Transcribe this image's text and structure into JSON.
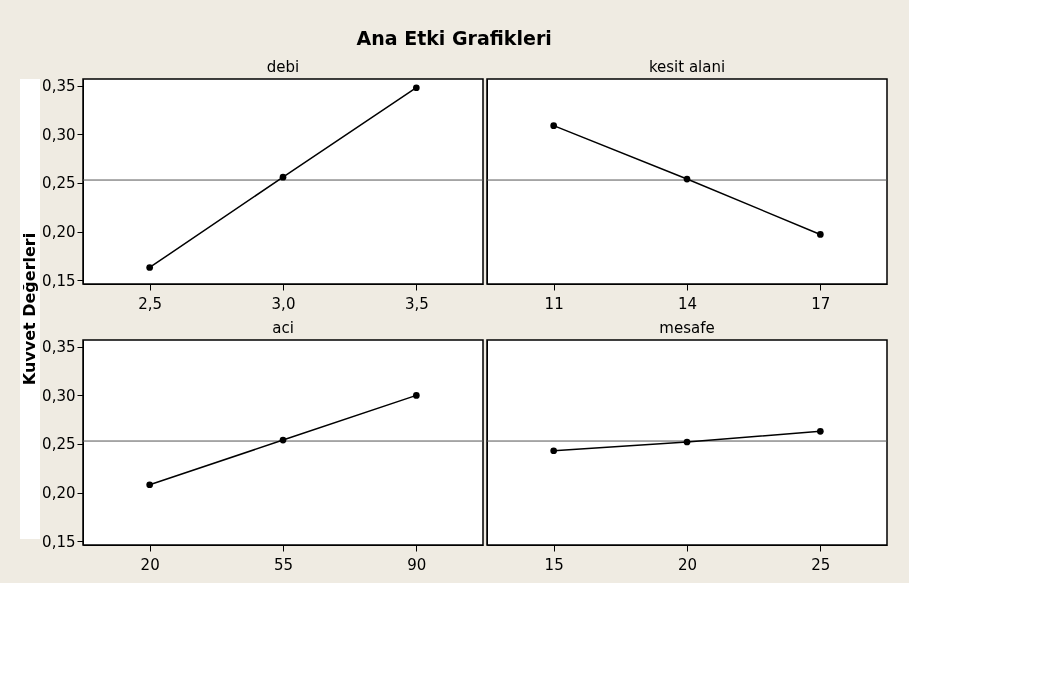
{
  "chart_data": [
    {
      "type": "line",
      "title": "Ana Etki Grafikleri",
      "ylabel": "Kuvvet Değerleri",
      "xlabel": "debi",
      "x": [
        2.5,
        3.0,
        3.5
      ],
      "values": [
        0.163,
        0.256,
        0.348
      ],
      "color": "#000000",
      "marker": "circle",
      "line_style": "solid",
      "grid": false,
      "xlim": [
        2.25,
        3.75
      ],
      "xticks": [
        {
          "value": 2.5,
          "label": "2,5"
        },
        {
          "value": 3.0,
          "label": "3,0"
        },
        {
          "value": 3.5,
          "label": "3,5"
        }
      ],
      "ylim": [
        0.146,
        0.357
      ],
      "yticks": [
        {
          "value": 0.15,
          "label": "0,15"
        },
        {
          "value": 0.2,
          "label": "0,20"
        },
        {
          "value": 0.25,
          "label": "0,25"
        },
        {
          "value": 0.3,
          "label": "0,30"
        },
        {
          "value": 0.35,
          "label": "0,35"
        }
      ],
      "ref_lines": [
        {
          "axis": "y",
          "value": 0.253,
          "color": "#555555"
        }
      ]
    },
    {
      "type": "line",
      "xlabel": "kesit alani",
      "x": [
        11,
        14,
        17
      ],
      "values": [
        0.309,
        0.254,
        0.197
      ],
      "color": "#000000",
      "marker": "circle",
      "line_style": "solid",
      "grid": false,
      "tick_labels": "x",
      "xlim": [
        9.5,
        18.5
      ],
      "xticks": [
        11,
        14,
        17
      ],
      "ylim": [
        0.146,
        0.357
      ],
      "ref_lines": [
        {
          "axis": "y",
          "value": 0.253,
          "color": "#555555"
        }
      ]
    },
    {
      "type": "line",
      "xlabel": "aci",
      "x": [
        20,
        55,
        90
      ],
      "values": [
        0.208,
        0.254,
        0.3
      ],
      "color": "#000000",
      "marker": "circle",
      "line_style": "solid",
      "grid": false,
      "xlim": [
        2.5,
        107.5
      ],
      "xticks": [
        20,
        55,
        90
      ],
      "ylim": [
        0.146,
        0.357
      ],
      "yticks": [
        {
          "value": 0.15,
          "label": "0,15"
        },
        {
          "value": 0.2,
          "label": "0,20"
        },
        {
          "value": 0.25,
          "label": "0,25"
        },
        {
          "value": 0.3,
          "label": "0,30"
        },
        {
          "value": 0.35,
          "label": "0,35"
        }
      ],
      "ref_lines": [
        {
          "axis": "y",
          "value": 0.253,
          "color": "#555555"
        }
      ]
    },
    {
      "type": "line",
      "xlabel": "mesafe",
      "x": [
        15,
        20,
        25
      ],
      "values": [
        0.243,
        0.252,
        0.263
      ],
      "color": "#000000",
      "marker": "circle",
      "line_style": "solid",
      "grid": false,
      "tick_labels": "x",
      "xlim": [
        12.5,
        27.5
      ],
      "xticks": [
        15,
        20,
        25
      ],
      "ylim": [
        0.146,
        0.357
      ],
      "ref_lines": [
        {
          "axis": "y",
          "value": 0.253,
          "color": "#555555"
        }
      ]
    }
  ]
}
